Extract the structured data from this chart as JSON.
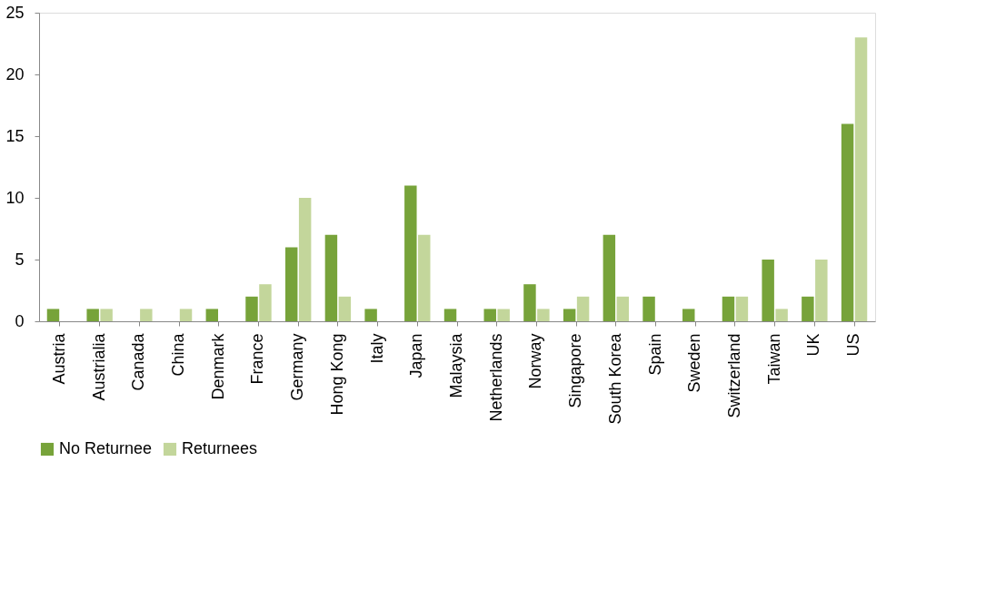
{
  "chart_data": {
    "type": "bar",
    "categories": [
      "Austria",
      "Austrialia",
      "Canada",
      "China",
      "Denmark",
      "France",
      "Germany",
      "Hong Kong",
      "Italy",
      "Japan",
      "Malaysia",
      "Netherlands",
      "Norway",
      "Singapore",
      "South Korea",
      "Spain",
      "Sweden",
      "Switzerland",
      "Taiwan",
      "UK",
      "US"
    ],
    "series": [
      {
        "name": "No Returnee",
        "color": "#77a33a",
        "values": [
          1,
          1,
          0,
          0,
          1,
          2,
          6,
          7,
          1,
          11,
          1,
          1,
          3,
          1,
          7,
          2,
          1,
          2,
          5,
          2,
          16
        ]
      },
      {
        "name": "Returnees",
        "color": "#c3d69b",
        "values": [
          0,
          1,
          1,
          1,
          0,
          3,
          10,
          2,
          0,
          7,
          0,
          1,
          1,
          2,
          2,
          0,
          0,
          2,
          1,
          5,
          23
        ]
      }
    ],
    "ylim": [
      0,
      25
    ],
    "yticks": [
      0,
      5,
      10,
      15,
      20,
      25
    ],
    "grid": false,
    "legend": "bottom"
  }
}
